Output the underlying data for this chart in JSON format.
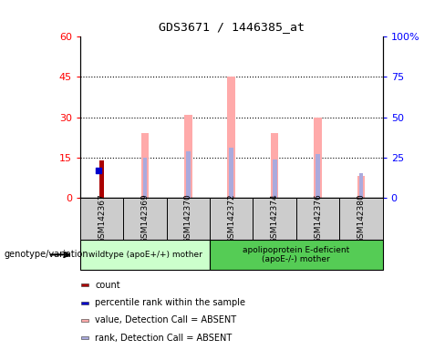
{
  "title": "GDS3671 / 1446385_at",
  "samples": [
    "GSM142367",
    "GSM142369",
    "GSM142370",
    "GSM142372",
    "GSM142374",
    "GSM142376",
    "GSM142380"
  ],
  "count_values": [
    14,
    0,
    0,
    0,
    0,
    0,
    0
  ],
  "percentile_rank_values": [
    17,
    0,
    0,
    0,
    0,
    0,
    0
  ],
  "value_absent": [
    0,
    24,
    31,
    45,
    24,
    30,
    8
  ],
  "rank_absent": [
    0,
    25,
    29,
    31,
    24,
    27,
    15
  ],
  "ylim_left": [
    0,
    60
  ],
  "ylim_right": [
    0,
    100
  ],
  "yticks_left": [
    0,
    15,
    30,
    45,
    60
  ],
  "yticks_right": [
    0,
    25,
    50,
    75,
    100
  ],
  "ytick_labels_right": [
    "0",
    "25",
    "50",
    "75",
    "100%"
  ],
  "group1_label": "wildtype (apoE+/+) mother",
  "group2_label": "apolipoprotein E-deficient\n(apoE-/-) mother",
  "genotype_label": "genotype/variation",
  "bar_color_count": "#aa0000",
  "bar_color_rank": "#0000cc",
  "bar_color_value_absent": "#ffaaaa",
  "bar_color_rank_absent": "#aaaadd",
  "group1_bg": "#ccffcc",
  "group2_bg": "#55cc55",
  "sample_bg": "#cccccc",
  "legend_labels": [
    "count",
    "percentile rank within the sample",
    "value, Detection Call = ABSENT",
    "rank, Detection Call = ABSENT"
  ],
  "legend_colors": [
    "#aa0000",
    "#0000cc",
    "#ffaaaa",
    "#aaaadd"
  ]
}
